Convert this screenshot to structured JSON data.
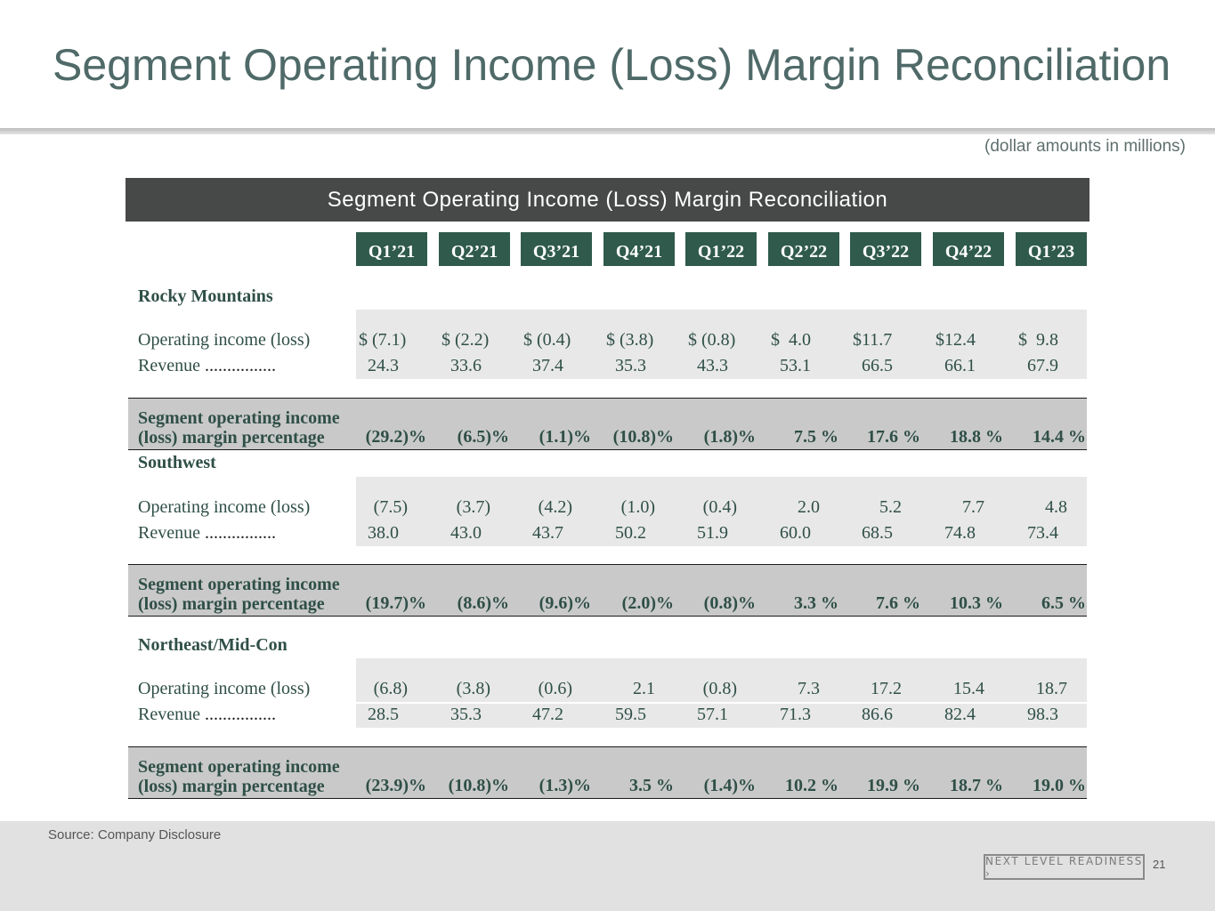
{
  "title": "Segment Operating Income (Loss) Margin Reconciliation",
  "units_note": "(dollar amounts in millions)",
  "table_title": "Segment Operating Income (Loss) Margin Reconciliation",
  "quarters": [
    "Q1’21",
    "Q2’21",
    "Q3’21",
    "Q4’21",
    "Q1’22",
    "Q2’22",
    "Q3’22",
    "Q4’22",
    "Q1’23"
  ],
  "row_labels": {
    "operating_income": "Operating income (loss)",
    "revenue": "Revenue",
    "revenue_leader": "................",
    "margin_line1": "Segment operating income",
    "margin_line2": "(loss) margin percentage"
  },
  "segments": [
    {
      "name": "Rocky Mountains",
      "operating_income": [
        "$ (7.1)",
        "$ (2.2)",
        "$ (0.4)",
        "$ (3.8)",
        "$ (0.8)",
        "$  4.0",
        "$11.7",
        "$12.4",
        "$  9.8"
      ],
      "revenue": [
        "24.3",
        "33.6",
        "37.4",
        "35.3",
        "43.3",
        "53.1",
        "66.5",
        "66.1",
        "67.9"
      ],
      "margin": [
        "(29.2)%",
        "(6.5)%",
        "(1.1)%",
        "(10.8)%",
        "(1.8)%",
        "7.5 %",
        "17.6 %",
        "18.8 %",
        "14.4 %"
      ]
    },
    {
      "name": "Southwest",
      "operating_income": [
        "(7.5)",
        "(3.7)",
        "(4.2)",
        "(1.0)",
        "(0.4)",
        "2.0",
        "5.2",
        "7.7",
        "4.8"
      ],
      "revenue": [
        "38.0",
        "43.0",
        "43.7",
        "50.2",
        "51.9",
        "60.0",
        "68.5",
        "74.8",
        "73.4"
      ],
      "margin": [
        "(19.7)%",
        "(8.6)%",
        "(9.6)%",
        "(2.0)%",
        "(0.8)%",
        "3.3 %",
        "7.6 %",
        "10.3 %",
        "6.5 %"
      ]
    },
    {
      "name": "Northeast/Mid-Con",
      "operating_income": [
        "(6.8)",
        "(3.8)",
        "(0.6)",
        "2.1",
        "(0.8)",
        "7.3",
        "17.2",
        "15.4",
        "18.7"
      ],
      "revenue": [
        "28.5",
        "35.3",
        "47.2",
        "59.5",
        "57.1",
        "71.3",
        "86.6",
        "82.4",
        "98.3"
      ],
      "margin": [
        "(23.9)%",
        "(10.8)%",
        "(1.3)%",
        "3.5 %",
        "(1.4)%",
        "10.2 %",
        "19.9 %",
        "18.7 %",
        "19.0 %"
      ]
    }
  ],
  "source": "Source: Company Disclosure",
  "badge_text": "NEXT LEVEL READINESS ›",
  "page_number": "21"
}
